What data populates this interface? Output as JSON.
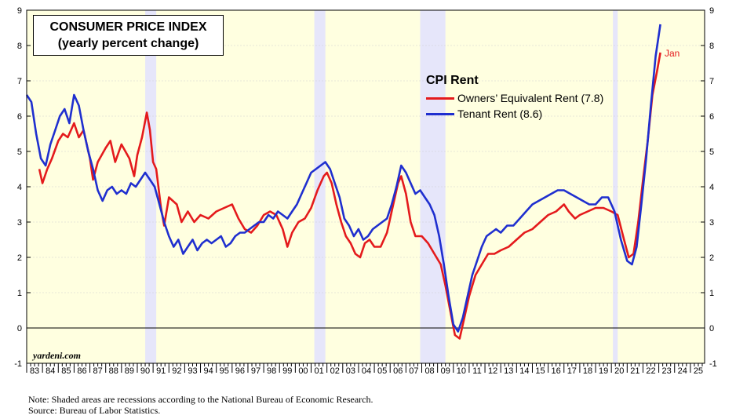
{
  "title_line1": "CONSUMER PRICE INDEX",
  "title_line2": "(yearly percent change)",
  "watermark": "yardeni.com",
  "end_label": "Jan",
  "note": "Note: Shaded areas are recessions according to the National Bureau of Economic Research.",
  "source": "Source: Bureau of Labor Statistics.",
  "chart_data": {
    "type": "line",
    "legend_title": "CPI Rent",
    "xlim": [
      1983,
      2025.9
    ],
    "ylim": [
      -1,
      9
    ],
    "y_ticks": [
      -1,
      0,
      1,
      2,
      3,
      4,
      5,
      6,
      7,
      8,
      9
    ],
    "x_tick_labels": [
      "83",
      "84",
      "85",
      "86",
      "87",
      "88",
      "89",
      "90",
      "91",
      "92",
      "93",
      "94",
      "95",
      "96",
      "97",
      "98",
      "99",
      "00",
      "01",
      "02",
      "03",
      "04",
      "05",
      "06",
      "07",
      "08",
      "09",
      "10",
      "11",
      "12",
      "13",
      "14",
      "15",
      "16",
      "17",
      "18",
      "19",
      "20",
      "21",
      "22",
      "23",
      "24",
      "25"
    ],
    "recessions": [
      [
        1990.5,
        1991.2
      ],
      [
        2001.2,
        2001.9
      ],
      [
        2007.9,
        2009.5
      ],
      [
        2020.1,
        2020.4
      ]
    ],
    "colors": {
      "plot_bg": "#ffffe0",
      "recession": "#e6e6fa",
      "oer": "#e41a1c",
      "tenant": "#1f2fcf"
    },
    "series": [
      {
        "name": "Owners’ Equivalent Rent (7.8)",
        "color": "#e41a1c",
        "points": [
          [
            1983.8,
            4.5
          ],
          [
            1984.0,
            4.1
          ],
          [
            1984.3,
            4.5
          ],
          [
            1984.6,
            4.8
          ],
          [
            1985.0,
            5.3
          ],
          [
            1985.3,
            5.5
          ],
          [
            1985.6,
            5.4
          ],
          [
            1986.0,
            5.8
          ],
          [
            1986.3,
            5.4
          ],
          [
            1986.6,
            5.6
          ],
          [
            1987.0,
            4.8
          ],
          [
            1987.2,
            4.2
          ],
          [
            1987.5,
            4.7
          ],
          [
            1988.0,
            5.1
          ],
          [
            1988.3,
            5.3
          ],
          [
            1988.6,
            4.7
          ],
          [
            1989.0,
            5.2
          ],
          [
            1989.5,
            4.8
          ],
          [
            1989.8,
            4.3
          ],
          [
            1990.0,
            4.9
          ],
          [
            1990.3,
            5.4
          ],
          [
            1990.6,
            6.1
          ],
          [
            1990.8,
            5.6
          ],
          [
            1991.0,
            4.7
          ],
          [
            1991.2,
            4.5
          ],
          [
            1991.5,
            3.4
          ],
          [
            1991.7,
            2.9
          ],
          [
            1992.0,
            3.7
          ],
          [
            1992.5,
            3.5
          ],
          [
            1992.8,
            3.0
          ],
          [
            1993.2,
            3.3
          ],
          [
            1993.6,
            3.0
          ],
          [
            1994.0,
            3.2
          ],
          [
            1994.5,
            3.1
          ],
          [
            1995.0,
            3.3
          ],
          [
            1995.5,
            3.4
          ],
          [
            1996.0,
            3.5
          ],
          [
            1996.4,
            3.1
          ],
          [
            1996.8,
            2.8
          ],
          [
            1997.2,
            2.7
          ],
          [
            1997.6,
            2.9
          ],
          [
            1998.0,
            3.2
          ],
          [
            1998.4,
            3.3
          ],
          [
            1998.8,
            3.2
          ],
          [
            1999.2,
            2.8
          ],
          [
            1999.5,
            2.3
          ],
          [
            1999.8,
            2.7
          ],
          [
            2000.2,
            3.0
          ],
          [
            2000.6,
            3.1
          ],
          [
            2001.0,
            3.4
          ],
          [
            2001.4,
            3.9
          ],
          [
            2001.8,
            4.3
          ],
          [
            2002.0,
            4.4
          ],
          [
            2002.3,
            4.1
          ],
          [
            2002.6,
            3.5
          ],
          [
            2002.9,
            3.0
          ],
          [
            2003.2,
            2.6
          ],
          [
            2003.5,
            2.4
          ],
          [
            2003.8,
            2.1
          ],
          [
            2004.1,
            2.0
          ],
          [
            2004.4,
            2.4
          ],
          [
            2004.7,
            2.5
          ],
          [
            2005.0,
            2.3
          ],
          [
            2005.4,
            2.3
          ],
          [
            2005.8,
            2.7
          ],
          [
            2006.2,
            3.5
          ],
          [
            2006.5,
            4.1
          ],
          [
            2006.7,
            4.3
          ],
          [
            2007.0,
            3.8
          ],
          [
            2007.3,
            3.0
          ],
          [
            2007.6,
            2.6
          ],
          [
            2008.0,
            2.6
          ],
          [
            2008.4,
            2.4
          ],
          [
            2008.8,
            2.1
          ],
          [
            2009.2,
            1.8
          ],
          [
            2009.5,
            1.2
          ],
          [
            2009.8,
            0.5
          ],
          [
            2010.1,
            -0.2
          ],
          [
            2010.4,
            -0.3
          ],
          [
            2010.7,
            0.3
          ],
          [
            2011.0,
            0.9
          ],
          [
            2011.4,
            1.5
          ],
          [
            2011.8,
            1.8
          ],
          [
            2012.2,
            2.1
          ],
          [
            2012.6,
            2.1
          ],
          [
            2013.0,
            2.2
          ],
          [
            2013.5,
            2.3
          ],
          [
            2014.0,
            2.5
          ],
          [
            2014.5,
            2.7
          ],
          [
            2015.0,
            2.8
          ],
          [
            2015.5,
            3.0
          ],
          [
            2016.0,
            3.2
          ],
          [
            2016.5,
            3.3
          ],
          [
            2017.0,
            3.5
          ],
          [
            2017.3,
            3.3
          ],
          [
            2017.7,
            3.1
          ],
          [
            2018.0,
            3.2
          ],
          [
            2018.5,
            3.3
          ],
          [
            2019.0,
            3.4
          ],
          [
            2019.5,
            3.4
          ],
          [
            2020.0,
            3.3
          ],
          [
            2020.4,
            3.2
          ],
          [
            2020.8,
            2.5
          ],
          [
            2021.1,
            2.0
          ],
          [
            2021.4,
            2.1
          ],
          [
            2021.7,
            3.0
          ],
          [
            2022.0,
            4.2
          ],
          [
            2022.3,
            5.3
          ],
          [
            2022.6,
            6.6
          ],
          [
            2022.9,
            7.3
          ],
          [
            2023.1,
            7.8
          ]
        ]
      },
      {
        "name": "Tenant Rent (8.6)",
        "color": "#1f2fcf",
        "points": [
          [
            1983.0,
            6.6
          ],
          [
            1983.3,
            6.4
          ],
          [
            1983.6,
            5.5
          ],
          [
            1983.9,
            4.8
          ],
          [
            1984.2,
            4.6
          ],
          [
            1984.5,
            5.2
          ],
          [
            1984.8,
            5.6
          ],
          [
            1985.1,
            6.0
          ],
          [
            1985.4,
            6.2
          ],
          [
            1985.7,
            5.8
          ],
          [
            1986.0,
            6.6
          ],
          [
            1986.3,
            6.3
          ],
          [
            1986.6,
            5.6
          ],
          [
            1986.9,
            5.0
          ],
          [
            1987.2,
            4.5
          ],
          [
            1987.5,
            3.9
          ],
          [
            1987.8,
            3.6
          ],
          [
            1988.1,
            3.9
          ],
          [
            1988.4,
            4.0
          ],
          [
            1988.7,
            3.8
          ],
          [
            1989.0,
            3.9
          ],
          [
            1989.3,
            3.8
          ],
          [
            1989.6,
            4.1
          ],
          [
            1989.9,
            4.0
          ],
          [
            1990.2,
            4.2
          ],
          [
            1990.5,
            4.4
          ],
          [
            1990.8,
            4.2
          ],
          [
            1991.1,
            4.0
          ],
          [
            1991.4,
            3.5
          ],
          [
            1991.7,
            3.0
          ],
          [
            1992.0,
            2.6
          ],
          [
            1992.3,
            2.3
          ],
          [
            1992.6,
            2.5
          ],
          [
            1992.9,
            2.1
          ],
          [
            1993.2,
            2.3
          ],
          [
            1993.5,
            2.5
          ],
          [
            1993.8,
            2.2
          ],
          [
            1994.1,
            2.4
          ],
          [
            1994.4,
            2.5
          ],
          [
            1994.7,
            2.4
          ],
          [
            1995.0,
            2.5
          ],
          [
            1995.3,
            2.6
          ],
          [
            1995.6,
            2.3
          ],
          [
            1995.9,
            2.4
          ],
          [
            1996.2,
            2.6
          ],
          [
            1996.5,
            2.7
          ],
          [
            1996.8,
            2.7
          ],
          [
            1997.1,
            2.8
          ],
          [
            1997.4,
            2.9
          ],
          [
            1997.7,
            3.0
          ],
          [
            1998.0,
            3.0
          ],
          [
            1998.3,
            3.2
          ],
          [
            1998.6,
            3.1
          ],
          [
            1998.9,
            3.3
          ],
          [
            1999.2,
            3.2
          ],
          [
            1999.5,
            3.1
          ],
          [
            1999.8,
            3.3
          ],
          [
            2000.1,
            3.5
          ],
          [
            2000.4,
            3.8
          ],
          [
            2000.7,
            4.1
          ],
          [
            2001.0,
            4.4
          ],
          [
            2001.3,
            4.5
          ],
          [
            2001.6,
            4.6
          ],
          [
            2001.9,
            4.7
          ],
          [
            2002.2,
            4.5
          ],
          [
            2002.5,
            4.1
          ],
          [
            2002.8,
            3.7
          ],
          [
            2003.1,
            3.1
          ],
          [
            2003.4,
            2.9
          ],
          [
            2003.7,
            2.6
          ],
          [
            2004.0,
            2.8
          ],
          [
            2004.3,
            2.5
          ],
          [
            2004.6,
            2.6
          ],
          [
            2004.9,
            2.8
          ],
          [
            2005.2,
            2.9
          ],
          [
            2005.5,
            3.0
          ],
          [
            2005.8,
            3.1
          ],
          [
            2006.1,
            3.5
          ],
          [
            2006.4,
            4.0
          ],
          [
            2006.7,
            4.6
          ],
          [
            2007.0,
            4.4
          ],
          [
            2007.3,
            4.1
          ],
          [
            2007.6,
            3.8
          ],
          [
            2007.9,
            3.9
          ],
          [
            2008.2,
            3.7
          ],
          [
            2008.5,
            3.5
          ],
          [
            2008.8,
            3.2
          ],
          [
            2009.1,
            2.6
          ],
          [
            2009.4,
            1.8
          ],
          [
            2009.7,
            0.9
          ],
          [
            2010.0,
            0.1
          ],
          [
            2010.3,
            -0.1
          ],
          [
            2010.6,
            0.3
          ],
          [
            2010.9,
            0.9
          ],
          [
            2011.2,
            1.5
          ],
          [
            2011.5,
            1.9
          ],
          [
            2011.8,
            2.3
          ],
          [
            2012.1,
            2.6
          ],
          [
            2012.4,
            2.7
          ],
          [
            2012.7,
            2.8
          ],
          [
            2013.0,
            2.7
          ],
          [
            2013.4,
            2.9
          ],
          [
            2013.8,
            2.9
          ],
          [
            2014.2,
            3.1
          ],
          [
            2014.6,
            3.3
          ],
          [
            2015.0,
            3.5
          ],
          [
            2015.4,
            3.6
          ],
          [
            2015.8,
            3.7
          ],
          [
            2016.2,
            3.8
          ],
          [
            2016.6,
            3.9
          ],
          [
            2017.0,
            3.9
          ],
          [
            2017.4,
            3.8
          ],
          [
            2017.8,
            3.7
          ],
          [
            2018.2,
            3.6
          ],
          [
            2018.6,
            3.5
          ],
          [
            2019.0,
            3.5
          ],
          [
            2019.4,
            3.7
          ],
          [
            2019.8,
            3.7
          ],
          [
            2020.2,
            3.3
          ],
          [
            2020.6,
            2.5
          ],
          [
            2021.0,
            1.9
          ],
          [
            2021.3,
            1.8
          ],
          [
            2021.6,
            2.3
          ],
          [
            2021.9,
            3.5
          ],
          [
            2022.2,
            4.8
          ],
          [
            2022.5,
            6.3
          ],
          [
            2022.8,
            7.7
          ],
          [
            2023.1,
            8.6
          ]
        ]
      }
    ]
  }
}
